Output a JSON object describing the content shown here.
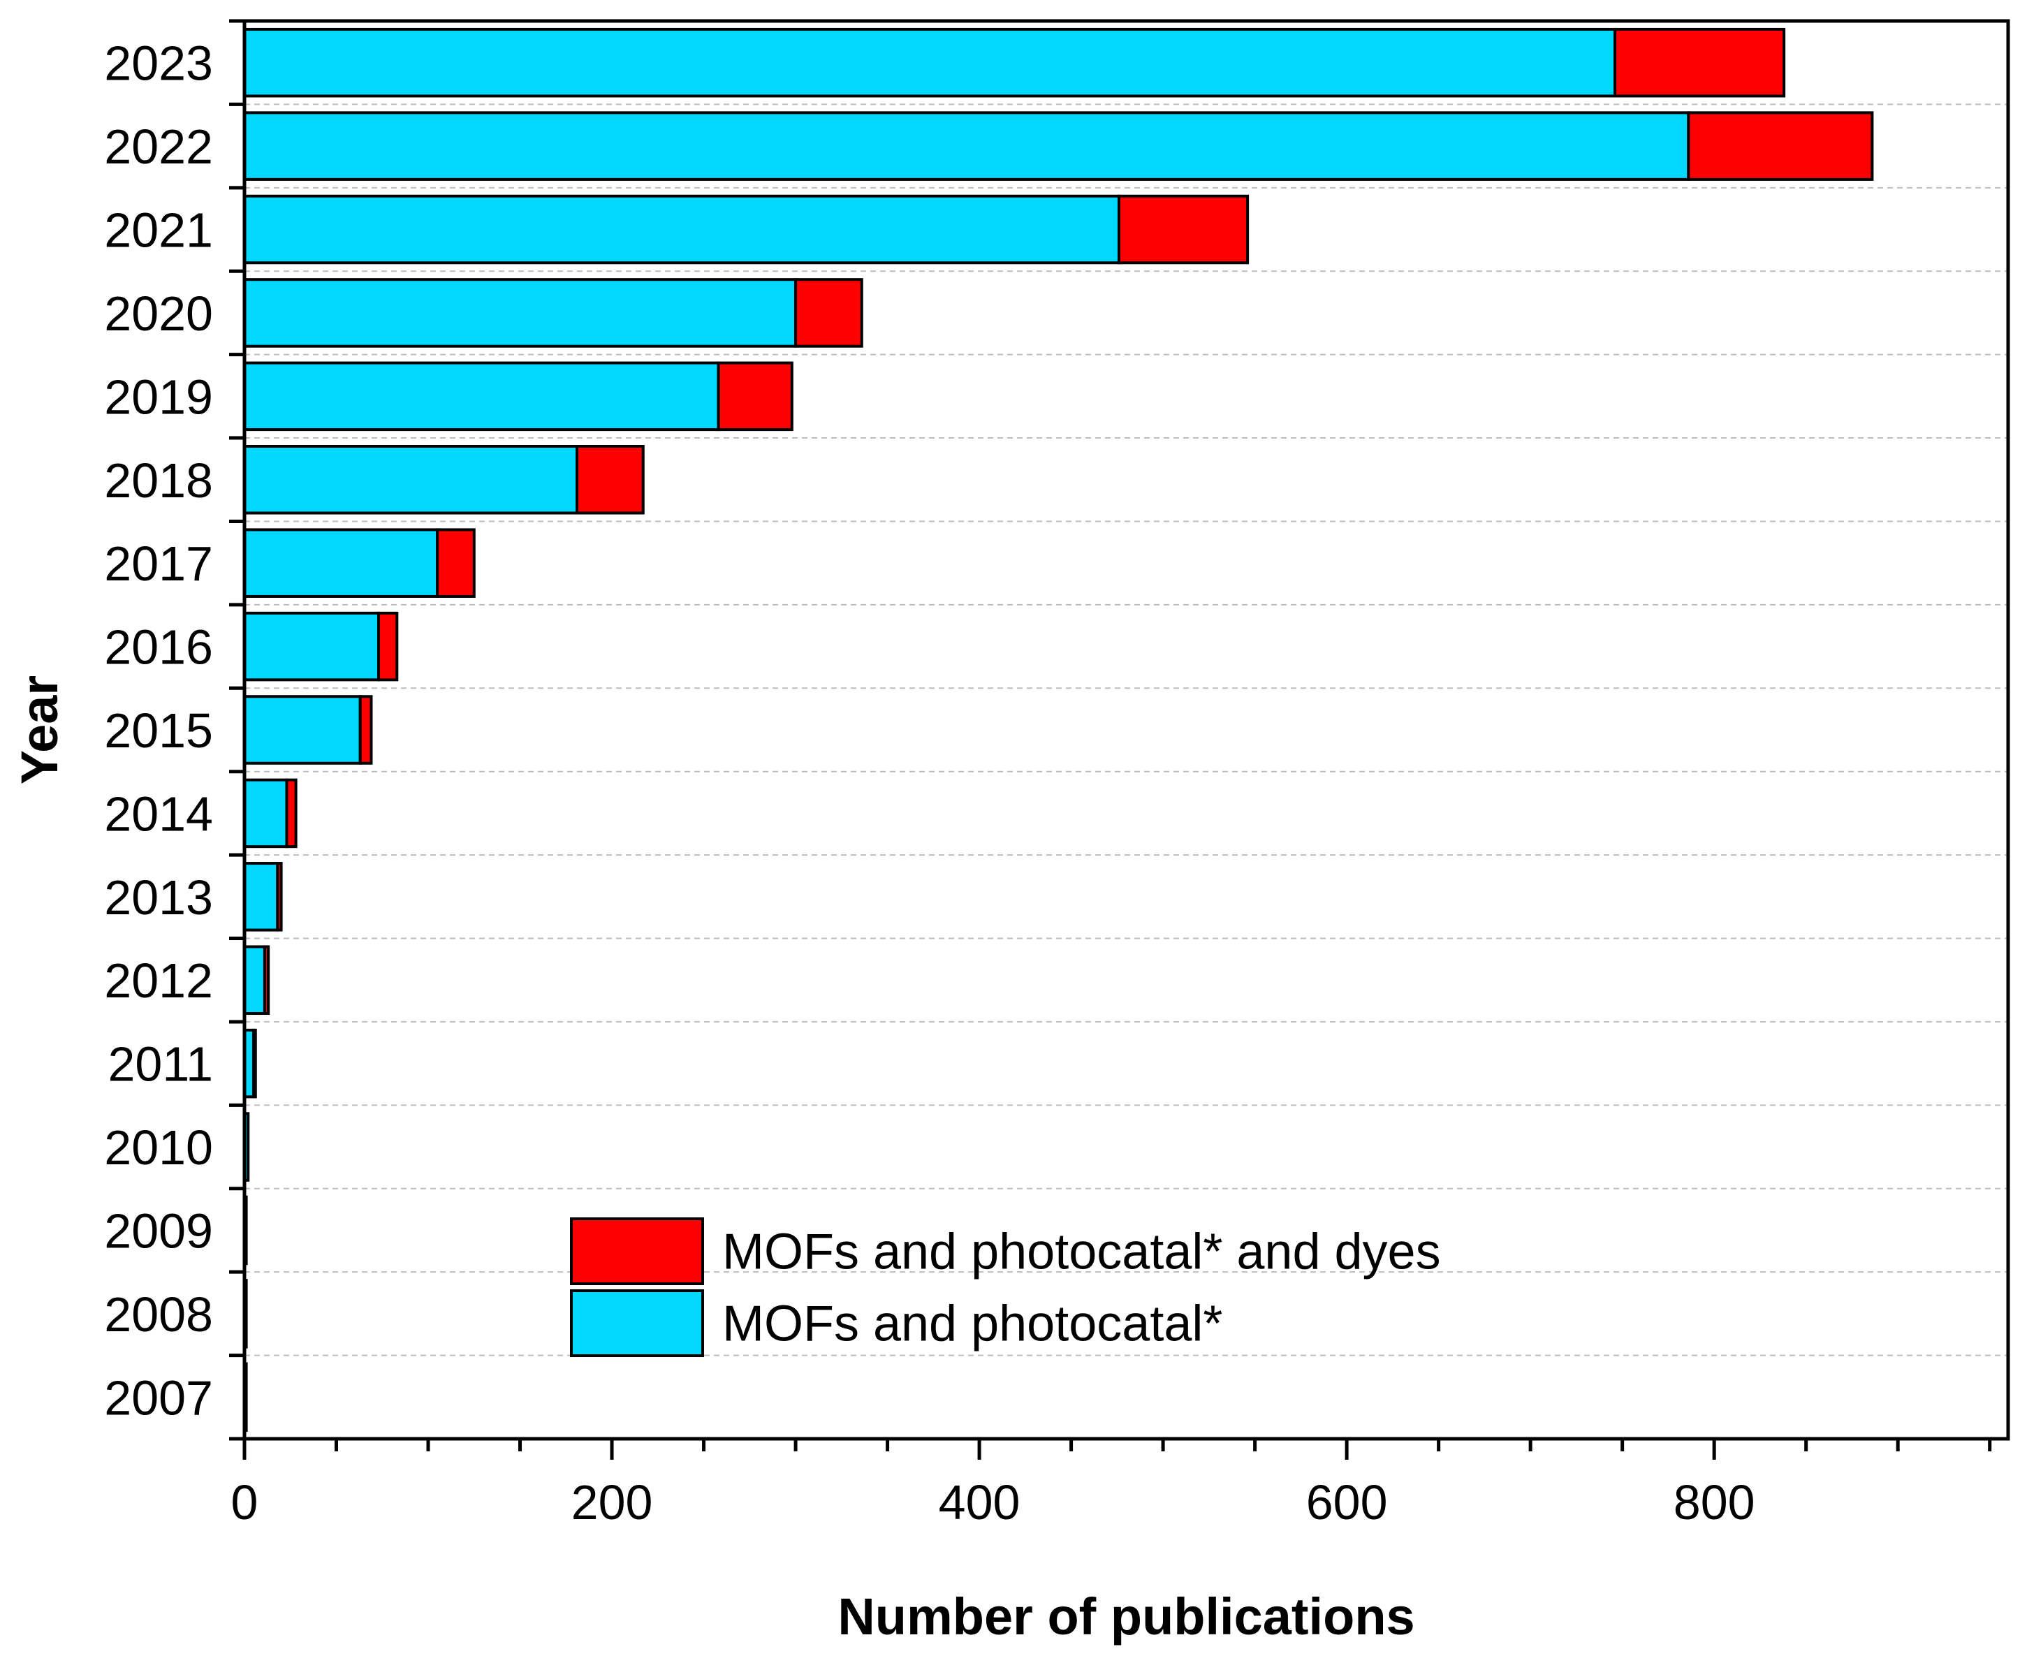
{
  "chart_data": {
    "type": "bar",
    "orientation": "horizontal",
    "stacked": true,
    "title": "",
    "xlabel": "Number of publications",
    "ylabel": "Year",
    "xlim": [
      0,
      960
    ],
    "x_ticks": [
      0,
      200,
      400,
      600,
      800
    ],
    "x_tick_labels": [
      "0",
      "200",
      "400",
      "600",
      "800"
    ],
    "grid": "horizontal dashed",
    "legend_position": "bottom-center",
    "categories": [
      "2023",
      "2022",
      "2021",
      "2020",
      "2019",
      "2018",
      "2017",
      "2016",
      "2015",
      "2014",
      "2013",
      "2012",
      "2011",
      "2010",
      "2009",
      "2008",
      "2007"
    ],
    "series": [
      {
        "name": "MOFs and photocatal*",
        "color": "#00D8FF",
        "values": [
          746,
          786,
          476,
          300,
          258,
          181,
          105,
          73,
          63,
          23,
          18,
          11,
          5,
          2,
          1,
          1,
          1
        ]
      },
      {
        "name": "MOFs and photocatal* and dyes",
        "color": "#FF0000",
        "values": [
          92,
          100,
          70,
          36,
          40,
          36,
          20,
          10,
          6,
          5,
          2,
          2,
          1,
          0,
          0,
          0,
          0
        ]
      }
    ],
    "legend": [
      {
        "label": "MOFs and photocatal* and dyes",
        "color": "#FF0000"
      },
      {
        "label": "MOFs and photocatal*",
        "color": "#00D8FF"
      }
    ]
  }
}
